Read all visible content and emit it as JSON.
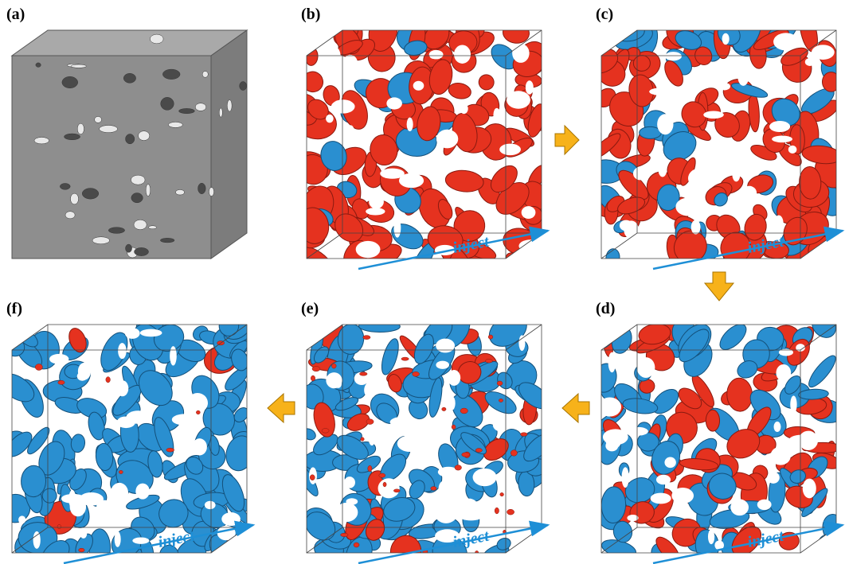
{
  "panels": [
    {
      "label": "(a)"
    },
    {
      "label": "(b)",
      "annotation": "inject"
    },
    {
      "label": "(c)",
      "annotation": "inject"
    },
    {
      "label": "(f)",
      "annotation": "inject"
    },
    {
      "label": "(e)",
      "annotation": "inject"
    },
    {
      "label": "(d)",
      "annotation": "inject"
    }
  ]
}
